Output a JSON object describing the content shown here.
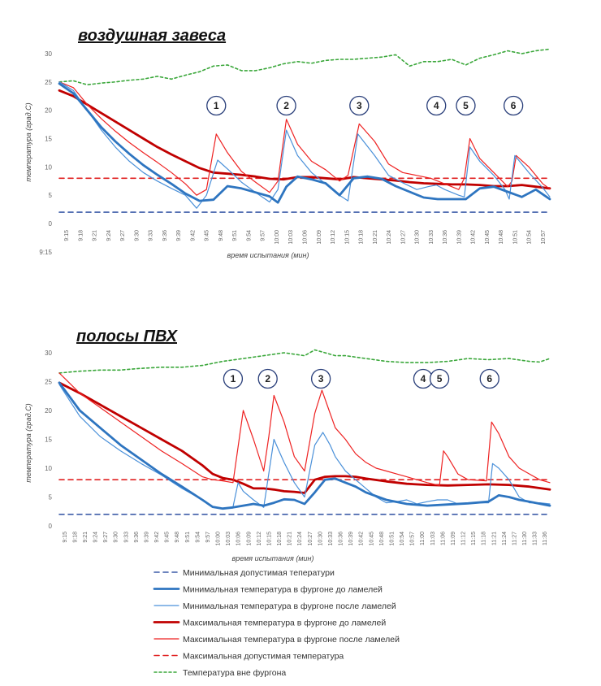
{
  "colors": {
    "min_allowed": "#3d5ca8",
    "min_before": "#2e75c0",
    "min_after": "#4a90d9",
    "max_before": "#c00000",
    "max_after": "#ee2222",
    "max_allowed": "#e02020",
    "outside": "#3aa73a"
  },
  "chart_data": [
    {
      "type": "line",
      "title": "воздушная завеса",
      "xlabel": "время испытания (мин)",
      "ylabel": "температура (град.С)",
      "ylim": [
        0,
        30
      ],
      "yticks": [
        0,
        5,
        10,
        15,
        20,
        25,
        30
      ],
      "extra_ytick": "9:15",
      "categories": [
        "9:15",
        "9:18",
        "9:21",
        "9:24",
        "9:27",
        "9:30",
        "9:33",
        "9:36",
        "9:39",
        "9:42",
        "9:45",
        "9:48",
        "9:51",
        "9:54",
        "9:57",
        "10:00",
        "10:03",
        "10:06",
        "10:09",
        "10:12",
        "10:15",
        "10:18",
        "10:21",
        "10:24",
        "10:27",
        "10:30",
        "10:33",
        "10:36",
        "10:39",
        "10:42",
        "10:45",
        "10:48",
        "10:51",
        "10:54",
        "10:57"
      ],
      "events": [
        {
          "label": "1",
          "x": 11.2
        },
        {
          "label": "2",
          "x": 16.2
        },
        {
          "label": "3",
          "x": 21.4
        },
        {
          "label": "4",
          "x": 26.9
        },
        {
          "label": "5",
          "x": 29.0
        },
        {
          "label": "6",
          "x": 32.4
        }
      ],
      "series": [
        {
          "key": "min_allowed",
          "name": "Минимальная допустимая теператури",
          "x": [
            0,
            35
          ],
          "y": [
            2,
            2
          ]
        },
        {
          "key": "max_allowed",
          "name": "Максимальная допустимая температура",
          "x": [
            0,
            35
          ],
          "y": [
            8,
            8
          ]
        },
        {
          "key": "outside",
          "name": "Температура вне фургона",
          "x": [
            0,
            1,
            2,
            3,
            4,
            5,
            6,
            7,
            8,
            9,
            10,
            11,
            12,
            13,
            14,
            15,
            16,
            17,
            18,
            19,
            20,
            21,
            22,
            23,
            24,
            25,
            26,
            27,
            28,
            29,
            30,
            31,
            32,
            33,
            34,
            35
          ],
          "y": [
            25,
            25.2,
            24.5,
            24.8,
            25,
            25.3,
            25.5,
            26,
            25.5,
            26.2,
            26.8,
            27.8,
            28,
            27,
            27,
            27.5,
            28.2,
            28.6,
            28.3,
            28.8,
            29,
            29,
            29.2,
            29.4,
            29.8,
            27.8,
            28.6,
            28.6,
            29,
            28,
            29.2,
            29.8,
            30.5,
            30,
            30.5,
            30.8
          ]
        },
        {
          "key": "max_before",
          "name": "Максимальная температура в фургоне до ламелей",
          "x": [
            0,
            1,
            2,
            3,
            4,
            5,
            6,
            7,
            8,
            9,
            10,
            11,
            12,
            13,
            14,
            15,
            16,
            17,
            18,
            19,
            20,
            21,
            22,
            23,
            24,
            25,
            26,
            27,
            28,
            29,
            30,
            31,
            32,
            33,
            34,
            35
          ],
          "y": [
            23.5,
            22.5,
            21,
            19.5,
            18,
            16.5,
            15,
            13.5,
            12.2,
            11,
            9.8,
            9,
            8.8,
            8.6,
            8.3,
            7.9,
            7.8,
            8.2,
            8.2,
            8,
            7.8,
            8.2,
            8,
            7.8,
            7.6,
            7.3,
            7.1,
            7,
            6.9,
            6.9,
            6.8,
            6.6,
            6.6,
            6.8,
            6.5,
            6.2
          ]
        },
        {
          "key": "max_after",
          "name": "Максимальная температура в фургоне после ламелей",
          "x": [
            0,
            1,
            2,
            3,
            4,
            5,
            6,
            7,
            8,
            9,
            9.8,
            10.5,
            11.2,
            12,
            13,
            14,
            15,
            15.6,
            16.2,
            17,
            18,
            19,
            20,
            20.6,
            21.4,
            22.5,
            23.5,
            24.5,
            25.5,
            26.5,
            27.5,
            28.5,
            28.9,
            29.3,
            30,
            31,
            32,
            32.3,
            32.6,
            33.5,
            34.5,
            35
          ],
          "y": [
            25,
            24,
            21,
            18.5,
            16.3,
            14.3,
            12.5,
            10.8,
            9,
            7,
            5,
            6,
            15.8,
            12.5,
            9.2,
            7.3,
            5.5,
            7.5,
            18.4,
            14,
            11,
            9.5,
            7.5,
            8.5,
            17.6,
            14.5,
            10.5,
            9,
            8.5,
            8,
            7,
            6,
            8,
            15,
            11.5,
            9,
            6.5,
            7.5,
            12,
            10,
            7,
            6.1
          ]
        },
        {
          "key": "min_after",
          "name": "Минимальная температура в фургоне после ламелей",
          "x": [
            0,
            1,
            2,
            3,
            4,
            5,
            6,
            7,
            8,
            9,
            9.8,
            10.5,
            11.3,
            12.2,
            13,
            14,
            15,
            15.6,
            16.2,
            17,
            18,
            19,
            20,
            20.6,
            21.3,
            22.5,
            23.5,
            24.5,
            25.5,
            26.3,
            26.9,
            27.5,
            28.5,
            28.9,
            29.3,
            30,
            31,
            31.8,
            32.1,
            32.5,
            33.5,
            34.5,
            35
          ],
          "y": [
            25,
            23.5,
            20,
            16.5,
            13.5,
            11,
            9,
            7.5,
            6.2,
            5,
            2.7,
            5,
            11.2,
            9.2,
            7.3,
            5.5,
            3.8,
            6,
            16.5,
            12,
            9,
            7,
            5,
            4,
            15.8,
            12,
            8.5,
            7.2,
            6,
            6.5,
            6.8,
            6,
            5,
            4.7,
            13.5,
            11,
            8.5,
            6,
            4.3,
            12,
            9,
            6.3,
            4.7
          ]
        },
        {
          "key": "min_before",
          "name": "Минимальная температура в фургоне до ламелей",
          "x": [
            0,
            1,
            2,
            3,
            4,
            5,
            6,
            7,
            8,
            9,
            10,
            11,
            12,
            13,
            14,
            15,
            15.6,
            16.2,
            17,
            18,
            19,
            20,
            21,
            22,
            23,
            24,
            25,
            26,
            27,
            28,
            29,
            30,
            31,
            32,
            33,
            34,
            35
          ],
          "y": [
            24.7,
            23,
            20,
            17,
            14.5,
            12.3,
            10.3,
            8.6,
            7,
            5.3,
            4,
            4.2,
            6.6,
            6.2,
            5.5,
            4.8,
            3.7,
            6.5,
            8.3,
            7.8,
            7.1,
            5,
            8,
            8.3,
            7.9,
            6.6,
            5.6,
            4.6,
            4.3,
            4.3,
            4.3,
            6.2,
            6.5,
            5.6,
            4.7,
            6,
            4.3
          ]
        }
      ]
    },
    {
      "type": "line",
      "title": "полосы ПВХ",
      "xlabel": "время испытания (мин)",
      "ylabel": "температура (град.С)",
      "ylim": [
        0,
        30
      ],
      "yticks": [
        0,
        5,
        10,
        15,
        20,
        25,
        30
      ],
      "categories": [
        "9:15",
        "9:18",
        "9:21",
        "9:24",
        "9:27",
        "9:30",
        "9:33",
        "9:36",
        "9:39",
        "9:42",
        "9:45",
        "9:48",
        "9:51",
        "9:54",
        "9:57",
        "10:00",
        "10:03",
        "10:06",
        "10:09",
        "10:12",
        "10:15",
        "10:18",
        "10:21",
        "10:24",
        "10:27",
        "10:30",
        "10:33",
        "10:36",
        "10:39",
        "10:42",
        "10:45",
        "10:48",
        "10:51",
        "10:54",
        "10:57",
        "11:00",
        "11:03",
        "11:06",
        "11:09",
        "11:12",
        "11:15",
        "11:18",
        "11:21",
        "11:24",
        "11:27",
        "11:30",
        "11:33",
        "11:36"
      ],
      "events": [
        {
          "label": "1",
          "x": 17
        },
        {
          "label": "2",
          "x": 20.4
        },
        {
          "label": "3",
          "x": 25.6
        },
        {
          "label": "4",
          "x": 35.6
        },
        {
          "label": "5",
          "x": 37.2
        },
        {
          "label": "6",
          "x": 42.1
        }
      ],
      "series": [
        {
          "key": "min_allowed",
          "name": "Минимальная допустимая теператури",
          "x": [
            0,
            48
          ],
          "y": [
            2,
            2
          ]
        },
        {
          "key": "max_allowed",
          "name": "Максимальная допустимая температура",
          "x": [
            0,
            48
          ],
          "y": [
            8,
            8
          ]
        },
        {
          "key": "outside",
          "name": "Температура вне фургона",
          "x": [
            0,
            2,
            4,
            6,
            8,
            10,
            12,
            14,
            16,
            18,
            20,
            22,
            24,
            25,
            26,
            27,
            28,
            30,
            32,
            34,
            36,
            38,
            40,
            42,
            44,
            46,
            47,
            48
          ],
          "y": [
            26.5,
            26.8,
            27,
            27,
            27.3,
            27.5,
            27.5,
            27.8,
            28.5,
            29,
            29.5,
            30,
            29.5,
            30.5,
            30,
            29.5,
            29.5,
            29,
            28.5,
            28.3,
            28.3,
            28.5,
            29,
            28.8,
            29,
            28.5,
            28.4,
            29
          ]
        },
        {
          "key": "max_before",
          "name": "Максимальная температура в фургоне до ламелей",
          "x": [
            0,
            2,
            4,
            6,
            8,
            10,
            12,
            14,
            15,
            16,
            17,
            18,
            19,
            20,
            21,
            22,
            23,
            24,
            25,
            26,
            27,
            28,
            29,
            30,
            32,
            34,
            36,
            38,
            40,
            42,
            44,
            46,
            48
          ],
          "y": [
            24.8,
            23,
            21,
            19,
            17,
            15,
            13,
            10.5,
            9,
            8.3,
            8,
            7.3,
            6.5,
            6.5,
            6.3,
            6,
            5.9,
            5.7,
            8,
            8.5,
            8.6,
            8.6,
            8.5,
            8.2,
            7.7,
            7.3,
            7.1,
            7,
            7.1,
            7.2,
            7.1,
            6.8,
            6.3
          ]
        },
        {
          "key": "max_after",
          "name": "Максимальная температура в фургоне после ламелей",
          "x": [
            0,
            2,
            4,
            6,
            8,
            10,
            12,
            14,
            15,
            16,
            17,
            18,
            19,
            20,
            20.5,
            21,
            22,
            23,
            24,
            25,
            25.7,
            26.4,
            27,
            28,
            29,
            30,
            31,
            32,
            33,
            34,
            35,
            36,
            37.2,
            37.6,
            38,
            39,
            40,
            41.8,
            42.3,
            43,
            44,
            45,
            46,
            47,
            48
          ],
          "y": [
            26.5,
            23,
            20.5,
            18,
            15.5,
            13,
            10.8,
            8.5,
            8,
            7.8,
            7.5,
            20,
            15,
            9.5,
            15.5,
            22.6,
            18,
            12,
            9.5,
            19.5,
            23.5,
            20,
            17,
            15,
            12.5,
            11,
            10,
            9.5,
            9,
            8.5,
            8,
            7.5,
            7,
            13,
            12,
            9,
            8,
            7.8,
            18,
            16,
            12,
            10,
            9,
            8,
            7.5
          ]
        },
        {
          "key": "min_after",
          "name": "Минимальная температура в фургоне после ламелей",
          "x": [
            0,
            2,
            4,
            6,
            8,
            10,
            12,
            14,
            15,
            16,
            17,
            17.5,
            18,
            19,
            20,
            21,
            21.5,
            22,
            23,
            24,
            25,
            25.8,
            26.5,
            27,
            28,
            29,
            30,
            31,
            32,
            33,
            34,
            35,
            36,
            37,
            38,
            39,
            40,
            41,
            42,
            42.4,
            43,
            44,
            45,
            46,
            47,
            48
          ],
          "y": [
            24.5,
            19,
            15.5,
            13,
            10.8,
            8.8,
            6.5,
            4.5,
            3.2,
            3,
            3.3,
            7.5,
            6,
            4.5,
            3.2,
            15,
            13,
            11,
            7.5,
            5,
            14,
            16.2,
            14,
            12,
            9.5,
            8,
            6.5,
            5,
            4,
            4.2,
            4.5,
            3.8,
            4.2,
            4.5,
            4.5,
            3.8,
            4,
            4,
            4,
            10.8,
            10,
            8,
            5,
            4,
            4,
            3.8
          ]
        },
        {
          "key": "min_before",
          "name": "Минимальная температура в фургоне до ламелей",
          "x": [
            0,
            2,
            4,
            6,
            8,
            10,
            12,
            14,
            15,
            16,
            17,
            18,
            19,
            20,
            21,
            22,
            23,
            24,
            25,
            26,
            27,
            28,
            29,
            30,
            32,
            34,
            36,
            38,
            40,
            42,
            43,
            44,
            45,
            46,
            48
          ],
          "y": [
            24.8,
            20,
            17,
            14,
            11.5,
            9,
            6.8,
            4.5,
            3.3,
            3,
            3.2,
            3.5,
            3.8,
            3.5,
            4,
            4.6,
            4.5,
            3.8,
            5.8,
            8,
            8.2,
            7.5,
            6.8,
            5.8,
            4.5,
            3.8,
            3.5,
            3.7,
            3.9,
            4.2,
            5.3,
            5,
            4.5,
            4.2,
            3.5
          ]
        }
      ]
    }
  ],
  "legend": [
    {
      "key": "min_allowed",
      "style": "dashed",
      "label": "Минимальная допустимая теператури"
    },
    {
      "key": "min_before",
      "style": "thick",
      "label": "Минимальная температура в фургоне до ламелей"
    },
    {
      "key": "min_after",
      "style": "thin",
      "label": "Минимальная температура в фургоне после ламелей"
    },
    {
      "key": "max_before",
      "style": "thick",
      "label": "Максимальная температура в фургоне до ламелей"
    },
    {
      "key": "max_after",
      "style": "thin",
      "label": "Максимальная температура в фургоне после ламелей"
    },
    {
      "key": "max_allowed",
      "style": "dashed",
      "label": "Максимальная допустимая температура"
    },
    {
      "key": "outside",
      "style": "dotted",
      "label": "Температура вне фургона"
    }
  ]
}
